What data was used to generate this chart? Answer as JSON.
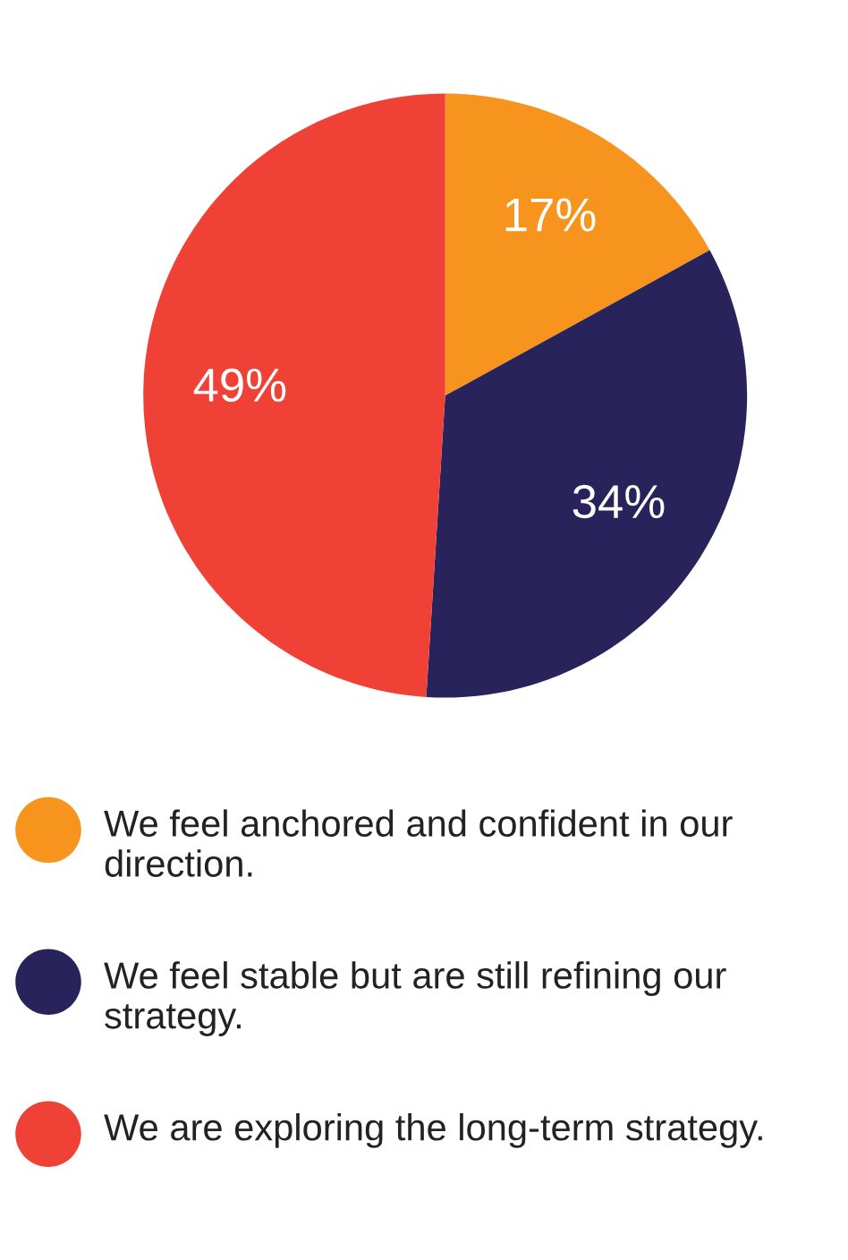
{
  "chart_data": {
    "type": "pie",
    "categories": [
      "We feel anchored and confident in our direction.",
      "We feel stable but are still refining our strategy.",
      "We are exploring the long-term strategy."
    ],
    "values": [
      17,
      34,
      49
    ],
    "colors": [
      "#f7941d",
      "#29235c",
      "#ef4136"
    ],
    "value_labels": [
      "17%",
      "34%",
      "49%"
    ],
    "legend": "bottom"
  }
}
